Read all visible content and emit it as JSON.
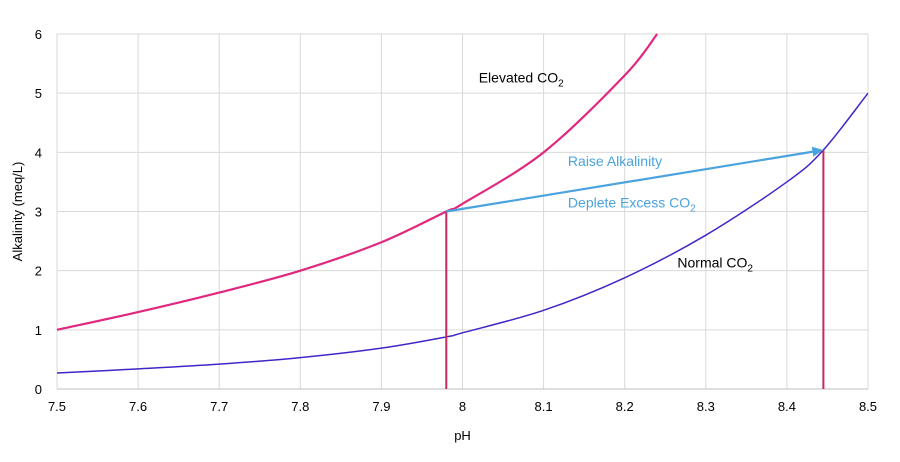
{
  "chart_data": {
    "type": "line",
    "title": "",
    "xlabel": "pH",
    "ylabel": "Alkalinity (meq/L)",
    "xlim": [
      7.5,
      8.5
    ],
    "ylim": [
      0,
      6
    ],
    "x_ticks": [
      7.5,
      7.6,
      7.7,
      7.8,
      7.9,
      8,
      8.1,
      8.2,
      8.3,
      8.4,
      8.5
    ],
    "x_tick_labels": [
      "7.5",
      "7.6",
      "7.7",
      "7.8",
      "7.9",
      "8",
      "8.1",
      "8.2",
      "8.3",
      "8.4",
      "8.5"
    ],
    "y_ticks": [
      0,
      1,
      2,
      3,
      4,
      5,
      6
    ],
    "y_tick_labels": [
      "0",
      "1",
      "2",
      "3",
      "4",
      "5",
      "6"
    ],
    "grid": true,
    "series": [
      {
        "name": "Elevated CO2",
        "color": "#e0287f",
        "x": [
          7.5,
          7.6,
          7.7,
          7.8,
          7.9,
          7.98,
          8.0,
          8.1,
          8.2,
          8.24
        ],
        "y": [
          1.0,
          1.3,
          1.63,
          2.0,
          2.48,
          3.0,
          3.13,
          4.0,
          5.3,
          6.0
        ]
      },
      {
        "name": "Normal CO2",
        "color": "#4028c8",
        "x": [
          7.5,
          7.6,
          7.7,
          7.8,
          7.9,
          7.98,
          8.0,
          8.1,
          8.2,
          8.3,
          8.4,
          8.445,
          8.5
        ],
        "y": [
          0.27,
          0.34,
          0.42,
          0.53,
          0.69,
          0.88,
          0.95,
          1.33,
          1.88,
          2.6,
          3.5,
          4.04,
          5.0
        ]
      }
    ],
    "arrow": {
      "color": "#4aa3de",
      "from": [
        7.98,
        3.0
      ],
      "to": [
        8.445,
        4.04
      ]
    },
    "vertical_lines": {
      "color": "#c8285f",
      "x": [
        7.98,
        8.445
      ],
      "top_y": [
        3.0,
        4.04
      ]
    },
    "annotations": [
      {
        "key": "elevated",
        "text": "Elevated CO",
        "sub": "2",
        "x": 8.02,
        "y": 5.18,
        "color": "#000000"
      },
      {
        "key": "normal",
        "text": "Normal CO",
        "sub": "2",
        "x": 8.265,
        "y": 2.05,
        "color": "#000000"
      },
      {
        "key": "raise",
        "text": "Raise Alkalinity",
        "sub": "",
        "x": 8.13,
        "y": 3.77,
        "color": "#4aa3de"
      },
      {
        "key": "deplete",
        "text": "Deplete Excess CO",
        "sub": "2",
        "x": 8.13,
        "y": 3.07,
        "color": "#4aa3de"
      }
    ]
  }
}
